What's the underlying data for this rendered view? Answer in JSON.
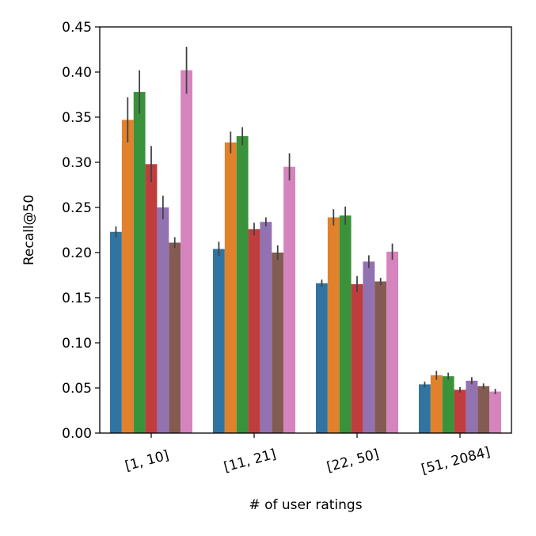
{
  "chart_data": {
    "type": "bar",
    "title": "",
    "xlabel": "# of user ratings",
    "ylabel": "Recall@50",
    "ylim": [
      0,
      0.45
    ],
    "yticks": [
      "0.00",
      "0.05",
      "0.10",
      "0.15",
      "0.20",
      "0.25",
      "0.30",
      "0.35",
      "0.40",
      "0.45"
    ],
    "categories": [
      "[1, 10]",
      "[11, 21]",
      "[22, 50]",
      "[51, 2084]"
    ],
    "legend": "none",
    "grid": false,
    "series": [
      {
        "name": "series-1",
        "color": "#3274a1",
        "values": [
          0.223,
          0.204,
          0.166,
          0.054
        ],
        "errors": [
          0.006,
          0.008,
          0.004,
          0.003
        ]
      },
      {
        "name": "series-2",
        "color": "#e1812c",
        "values": [
          0.347,
          0.322,
          0.239,
          0.064
        ],
        "errors": [
          0.025,
          0.012,
          0.009,
          0.005
        ]
      },
      {
        "name": "series-3",
        "color": "#3a923a",
        "values": [
          0.378,
          0.329,
          0.241,
          0.063
        ],
        "errors": [
          0.024,
          0.01,
          0.01,
          0.004
        ]
      },
      {
        "name": "series-4",
        "color": "#c03d3e",
        "values": [
          0.298,
          0.226,
          0.165,
          0.048
        ],
        "errors": [
          0.02,
          0.007,
          0.009,
          0.003
        ]
      },
      {
        "name": "series-5",
        "color": "#9372b2",
        "values": [
          0.25,
          0.234,
          0.19,
          0.058
        ],
        "errors": [
          0.013,
          0.005,
          0.007,
          0.004
        ]
      },
      {
        "name": "series-6",
        "color": "#845b53",
        "values": [
          0.211,
          0.2,
          0.168,
          0.052
        ],
        "errors": [
          0.006,
          0.008,
          0.004,
          0.003
        ]
      },
      {
        "name": "series-7",
        "color": "#d684bd",
        "values": [
          0.402,
          0.295,
          0.201,
          0.046
        ],
        "errors": [
          0.026,
          0.015,
          0.009,
          0.003
        ]
      }
    ]
  }
}
